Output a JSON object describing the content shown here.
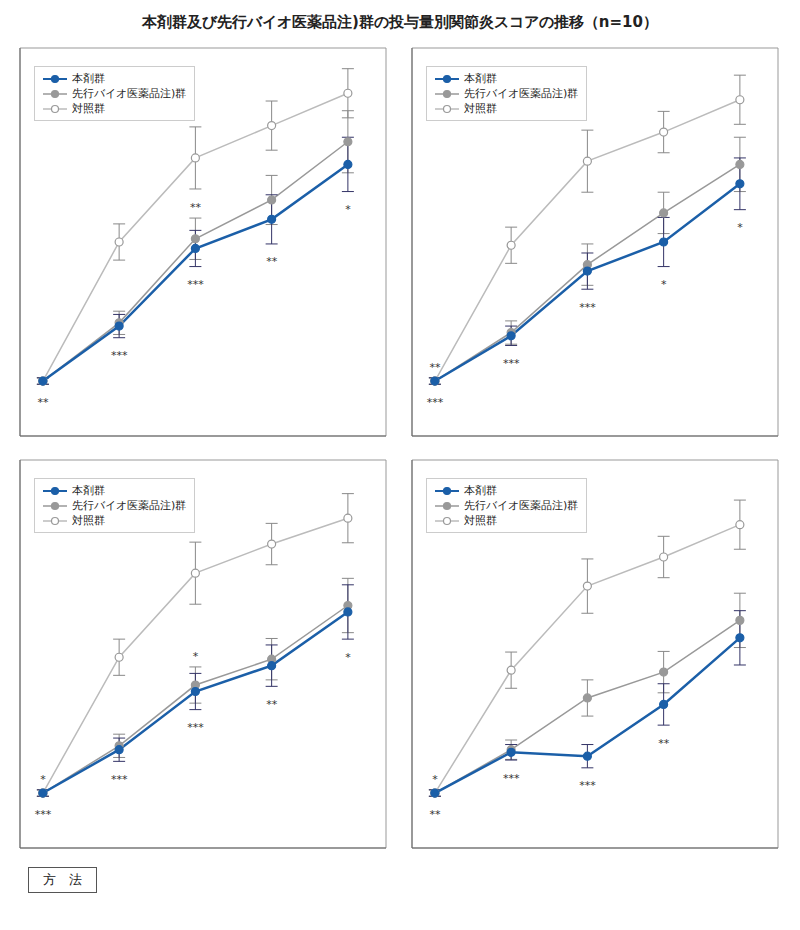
{
  "title": "本剤群及び先行バイオ医薬品注)群の投与量別関節炎スコアの推移（n=10）",
  "annotations": [
    "方　法"
  ],
  "chart_data": [
    {
      "type": "line",
      "x": [
        0,
        1,
        2,
        3,
        4
      ],
      "xlim": [
        -0.3,
        4.5
      ],
      "ylim": [
        -0.7,
        5.3
      ],
      "tick_labels": false,
      "legend": "upper left",
      "series": [
        {
          "name": "本剤群",
          "color": "#1B5FA8",
          "marker": "circle",
          "values": [
            0.15,
            1.0,
            2.2,
            2.65,
            3.5
          ],
          "errors": [
            0.05,
            0.18,
            0.28,
            0.38,
            0.42
          ]
        },
        {
          "name": "先行バイオ医薬品注)群",
          "color": "#999999",
          "marker": "circle",
          "values": [
            0.15,
            1.05,
            2.35,
            2.95,
            3.85
          ],
          "errors": [
            0.05,
            0.18,
            0.32,
            0.38,
            0.48
          ]
        },
        {
          "name": "対照群",
          "color": "#BBBBBB",
          "marker": "open",
          "values": [
            0.15,
            2.3,
            3.6,
            4.1,
            4.6
          ],
          "errors": [
            0.05,
            0.28,
            0.48,
            0.38,
            0.38
          ]
        }
      ],
      "annotations": [
        {
          "x": 0,
          "text": "**",
          "series": "本剤群"
        },
        {
          "x": 1,
          "text": "***",
          "series": "本剤群"
        },
        {
          "x": 2,
          "text": "***",
          "series": "本剤群"
        },
        {
          "x": 3,
          "text": "**",
          "series": "本剤群"
        },
        {
          "x": 4,
          "text": "*",
          "series": "本剤群"
        },
        {
          "x": 2,
          "text": "**",
          "series": "先行バイオ医薬品注)群"
        }
      ]
    },
    {
      "type": "line",
      "x": [
        0,
        1,
        2,
        3,
        4
      ],
      "xlim": [
        -0.3,
        4.5
      ],
      "ylim": [
        -0.7,
        5.3
      ],
      "tick_labels": false,
      "legend": "upper left",
      "series": [
        {
          "name": "本剤群",
          "color": "#1B5FA8",
          "marker": "circle",
          "values": [
            0.15,
            0.85,
            1.85,
            2.3,
            3.2
          ],
          "errors": [
            0.05,
            0.15,
            0.28,
            0.38,
            0.4
          ]
        },
        {
          "name": "先行バイオ医薬品注)群",
          "color": "#999999",
          "marker": "circle",
          "values": [
            0.15,
            0.9,
            1.95,
            2.75,
            3.5
          ],
          "errors": [
            0.05,
            0.18,
            0.32,
            0.32,
            0.42
          ]
        },
        {
          "name": "対照群",
          "color": "#BBBBBB",
          "marker": "open",
          "values": [
            0.15,
            2.25,
            3.55,
            4.0,
            4.5
          ],
          "errors": [
            0.05,
            0.28,
            0.48,
            0.32,
            0.38
          ]
        }
      ],
      "annotations": [
        {
          "x": 0,
          "text": "***",
          "series": "本剤群"
        },
        {
          "x": 1,
          "text": "***",
          "series": "本剤群"
        },
        {
          "x": 2,
          "text": "***",
          "series": "本剤群"
        },
        {
          "x": 3,
          "text": "*",
          "series": "本剤群"
        },
        {
          "x": 4,
          "text": "*",
          "series": "本剤群"
        },
        {
          "x": 0,
          "text": "**",
          "series": "先行バイオ医薬品注)群"
        }
      ]
    },
    {
      "type": "line",
      "x": [
        0,
        1,
        2,
        3,
        4
      ],
      "xlim": [
        -0.3,
        4.5
      ],
      "ylim": [
        -0.7,
        5.3
      ],
      "tick_labels": false,
      "legend": "upper left",
      "series": [
        {
          "name": "本剤群",
          "color": "#1B5FA8",
          "marker": "circle",
          "values": [
            0.15,
            0.82,
            1.72,
            2.12,
            2.95
          ],
          "errors": [
            0.05,
            0.18,
            0.28,
            0.32,
            0.42
          ]
        },
        {
          "name": "先行バイオ医薬品注)群",
          "color": "#999999",
          "marker": "circle",
          "values": [
            0.15,
            0.88,
            1.82,
            2.22,
            3.05
          ],
          "errors": [
            0.05,
            0.18,
            0.28,
            0.32,
            0.42
          ]
        },
        {
          "name": "対照群",
          "color": "#BBBBBB",
          "marker": "open",
          "values": [
            0.15,
            2.25,
            3.55,
            4.0,
            4.4
          ],
          "errors": [
            0.05,
            0.28,
            0.48,
            0.32,
            0.38
          ]
        }
      ],
      "annotations": [
        {
          "x": 0,
          "text": "***",
          "series": "本剤群"
        },
        {
          "x": 1,
          "text": "***",
          "series": "本剤群"
        },
        {
          "x": 2,
          "text": "***",
          "series": "本剤群"
        },
        {
          "x": 3,
          "text": "**",
          "series": "本剤群"
        },
        {
          "x": 4,
          "text": "*",
          "series": "本剤群"
        },
        {
          "x": 0,
          "text": "*",
          "series": "先行バイオ医薬品注)群"
        },
        {
          "x": 2,
          "text": "*",
          "series": "先行バイオ医薬品注)群"
        }
      ]
    },
    {
      "type": "line",
      "x": [
        0,
        1,
        2,
        3,
        4
      ],
      "xlim": [
        -0.3,
        4.5
      ],
      "ylim": [
        -0.7,
        5.3
      ],
      "tick_labels": false,
      "legend": "upper left",
      "series": [
        {
          "name": "本剤群",
          "color": "#1B5FA8",
          "marker": "circle",
          "values": [
            0.15,
            0.78,
            0.72,
            1.52,
            2.55
          ],
          "errors": [
            0.05,
            0.12,
            0.18,
            0.32,
            0.42
          ]
        },
        {
          "name": "先行バイオ医薬品注)群",
          "color": "#999999",
          "marker": "circle",
          "values": [
            0.15,
            0.82,
            1.62,
            2.02,
            2.82
          ],
          "errors": [
            0.05,
            0.15,
            0.28,
            0.32,
            0.42
          ]
        },
        {
          "name": "対照群",
          "color": "#BBBBBB",
          "marker": "open",
          "values": [
            0.15,
            2.05,
            3.35,
            3.8,
            4.3
          ],
          "errors": [
            0.05,
            0.28,
            0.42,
            0.32,
            0.38
          ]
        }
      ],
      "annotations": [
        {
          "x": 0,
          "text": "**",
          "series": "本剤群"
        },
        {
          "x": 1,
          "text": "***",
          "series": "本剤群"
        },
        {
          "x": 2,
          "text": "***",
          "series": "本剤群"
        },
        {
          "x": 3,
          "text": "**",
          "series": "本剤群"
        },
        {
          "x": 0,
          "text": "*",
          "series": "先行バイオ医薬品注)群"
        }
      ]
    }
  ]
}
